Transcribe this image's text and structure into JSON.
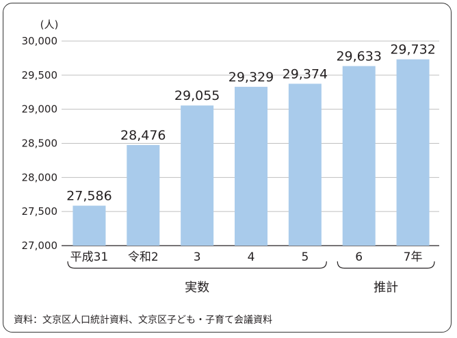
{
  "chart_data": {
    "type": "bar",
    "unit_label": "(人)",
    "categories": [
      "平成31",
      "令和2",
      "3",
      "4",
      "5",
      "6",
      "7年"
    ],
    "values": [
      27586,
      28476,
      29055,
      29329,
      29374,
      29633,
      29732
    ],
    "value_labels": [
      "27,586",
      "28,476",
      "29,055",
      "29,329",
      "29,374",
      "29,633",
      "29,732"
    ],
    "ylim": [
      27000,
      30000
    ],
    "yticks": [
      27000,
      27500,
      28000,
      28500,
      29000,
      29500,
      30000
    ],
    "ytick_labels": [
      "27,000",
      "27,500",
      "28,000",
      "28,500",
      "29,000",
      "29,500",
      "30,000"
    ],
    "grid": true,
    "groups": [
      {
        "label": "実数",
        "from": 0,
        "to": 4
      },
      {
        "label": "推計",
        "from": 5,
        "to": 6
      }
    ],
    "source": "資料：文京区人口統計資料、文京区子ども・子育て会議資料",
    "colors": {
      "bar": "#a9cbeb",
      "grid": "#bfbfbf",
      "axis": "#231f20",
      "text": "#231f20"
    }
  }
}
